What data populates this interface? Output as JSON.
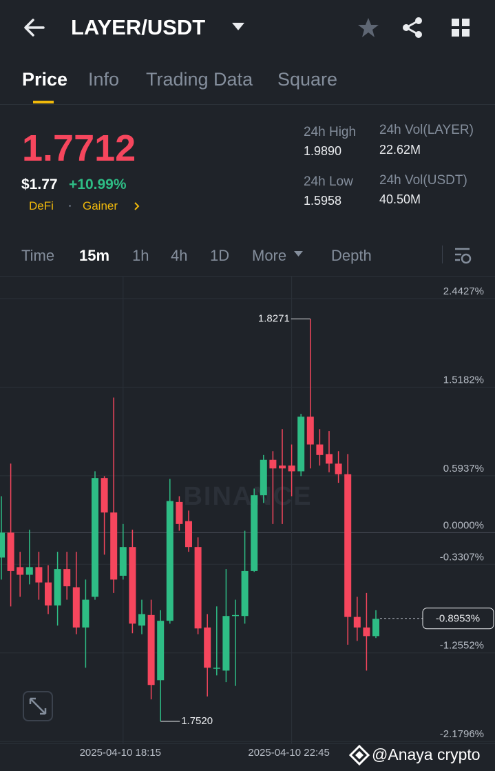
{
  "header": {
    "title": "LAYER/USDT"
  },
  "tabs": [
    "Price",
    "Info",
    "Trading Data",
    "Square"
  ],
  "ticker": {
    "price": "1.7712",
    "usd": "$1.77",
    "change": "+10.99%",
    "tags": [
      "DeFi",
      "Gainer"
    ],
    "stats": [
      {
        "label": "24h High",
        "value": "1.9890"
      },
      {
        "label": "24h Vol(LAYER)",
        "value": "22.62M"
      },
      {
        "label": "24h Low",
        "value": "1.5958"
      },
      {
        "label": "24h Vol(USDT)",
        "value": "40.50M"
      }
    ]
  },
  "intervals": [
    "Time",
    "15m",
    "1h",
    "4h",
    "1D",
    "More",
    "Depth"
  ],
  "chart_data": {
    "type": "candlestick",
    "watermark": "BINANCE",
    "categories": [
      null,
      null,
      null,
      null,
      null,
      null,
      null,
      null,
      null,
      null,
      null,
      null,
      null,
      "2025-04-10 18:15",
      null,
      null,
      null,
      null,
      null,
      null,
      null,
      null,
      null,
      null,
      null,
      null,
      null,
      null,
      null,
      null,
      null,
      "2025-04-10 22:45",
      null,
      null,
      null,
      null,
      null,
      null,
      null,
      null,
      null
    ],
    "open": [
      -0.26,
      0.0,
      -0.36,
      -0.44,
      -0.36,
      -0.52,
      -0.76,
      -0.38,
      -0.57,
      -0.99,
      -0.67,
      0.57,
      0.21,
      -0.45,
      -0.15,
      -0.97,
      -0.86,
      -1.54,
      -0.92,
      0.32,
      0.12,
      -0.15,
      -0.99,
      -1.42,
      -1.44,
      -0.87,
      -0.87,
      -0.4,
      0.39,
      0.76,
      0.7,
      0.7,
      0.64,
      1.21,
      0.92,
      0.82,
      0.72,
      0.61,
      -0.88,
      -0.99,
      -1.08
    ],
    "high": [
      0.38,
      0.72,
      -0.2,
      0.03,
      -0.2,
      -0.34,
      -0.2,
      -0.2,
      -0.2,
      -0.49,
      0.64,
      0.59,
      1.41,
      0.09,
      0.03,
      -0.7,
      -0.7,
      -0.81,
      0.56,
      0.38,
      0.23,
      -0.05,
      -0.85,
      -0.77,
      -0.38,
      -0.7,
      0.02,
      0.46,
      0.81,
      0.85,
      1.08,
      0.92,
      1.24,
      2.23,
      1.08,
      1.06,
      0.85,
      0.82,
      -0.67,
      -0.63,
      -0.81
    ],
    "low": [
      -0.49,
      -0.77,
      -0.67,
      -0.54,
      -0.7,
      -0.85,
      -0.97,
      -0.7,
      -1.06,
      -1.41,
      -0.7,
      -0.23,
      -0.63,
      -0.49,
      -1.05,
      -1.06,
      -1.74,
      -1.97,
      -0.95,
      0.02,
      -0.2,
      -1.06,
      -1.71,
      -1.49,
      -1.56,
      -1.6,
      -0.95,
      -0.41,
      0.31,
      0.09,
      0.09,
      0.38,
      0.59,
      0.67,
      0.7,
      0.63,
      0.52,
      -1.17,
      -1.13,
      -1.44,
      -1.1
    ],
    "close": [
      0.0,
      -0.4,
      -0.44,
      -0.36,
      -0.52,
      -0.76,
      -0.38,
      -0.56,
      -0.99,
      -0.7,
      0.57,
      0.21,
      -0.49,
      -0.15,
      -0.95,
      -0.85,
      -1.59,
      -0.92,
      0.33,
      0.09,
      -0.15,
      -1.0,
      -1.41,
      -1.41,
      -0.87,
      -0.86,
      -0.4,
      0.39,
      0.76,
      0.67,
      0.67,
      0.64,
      1.21,
      0.92,
      0.81,
      0.72,
      0.61,
      -0.88,
      -0.99,
      -1.08,
      -0.9
    ],
    "up_color": "#2ebd85",
    "down_color": "#f6465d",
    "max_label": "1.8271",
    "min_label": "1.7520",
    "last": {
      "value": -0.8953,
      "label": "-0.8953%"
    },
    "ylim": [
      -2.2,
      2.68
    ],
    "yticks": [
      {
        "value": 2.4427,
        "label": "2.4427%"
      },
      {
        "value": 1.5182,
        "label": "1.5182%"
      },
      {
        "value": 0.5937,
        "label": "0.5937%"
      },
      {
        "value": 0,
        "label": "0.0000%"
      },
      {
        "value": -0.3307,
        "label": "-0.3307%"
      },
      {
        "value": -1.2552,
        "label": "-1.2552%"
      },
      {
        "value": -2.1796,
        "label": "-2.1796%"
      }
    ],
    "grid": true
  },
  "watermark": "@Anaya crypto"
}
